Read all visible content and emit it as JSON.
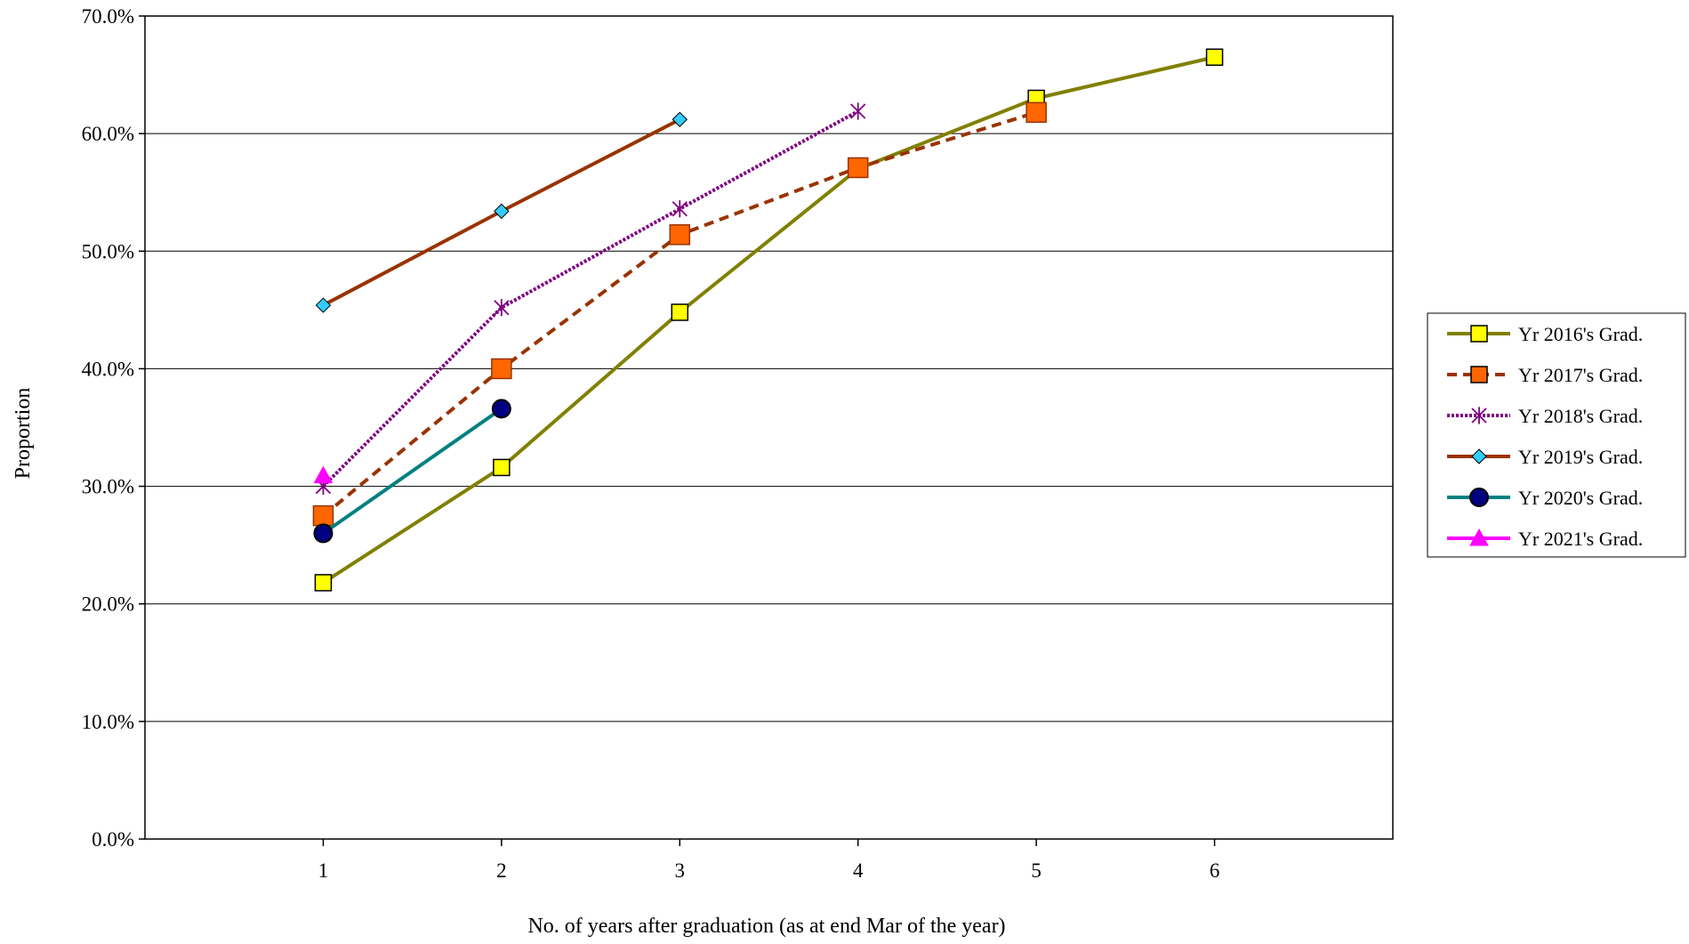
{
  "chart_data": {
    "type": "line",
    "title": "",
    "xlabel": "No. of years after graduation (as at end Mar of the year)",
    "ylabel": "Proportion",
    "x": [
      1,
      2,
      3,
      4,
      5,
      6
    ],
    "x_tick_labels": [
      "1",
      "2",
      "3",
      "4",
      "5",
      "6"
    ],
    "xlim": [
      0,
      7
    ],
    "ylim": [
      0,
      70
    ],
    "y_ticks": [
      0,
      10,
      20,
      30,
      40,
      50,
      60,
      70
    ],
    "y_tick_labels": [
      "0.0%",
      "10.0%",
      "20.0%",
      "30.0%",
      "40.0%",
      "50.0%",
      "60.0%",
      "70.0%"
    ],
    "grid": "horizontal",
    "legend_position": "right",
    "series": [
      {
        "name": "Yr 2016's Grad.",
        "x": [
          1,
          2,
          3,
          4,
          5,
          6
        ],
        "values": [
          21.8,
          31.6,
          44.8,
          57.0,
          63.0,
          66.5
        ],
        "color": "#808000",
        "marker_fill": "#ffff00",
        "marker": "square",
        "dash": "solid"
      },
      {
        "name": "Yr 2017's Grad.",
        "x": [
          1,
          2,
          3,
          4,
          5
        ],
        "values": [
          27.5,
          40.0,
          51.4,
          57.1,
          61.8
        ],
        "color": "#993300",
        "marker_fill": "#ff6600",
        "marker": "square-large",
        "dash": "dashed"
      },
      {
        "name": "Yr 2018's Grad.",
        "x": [
          1,
          2,
          3,
          4
        ],
        "values": [
          30.0,
          45.2,
          53.6,
          61.9
        ],
        "color": "#800080",
        "marker_fill": "#800080",
        "marker": "star",
        "dash": "dotted-double"
      },
      {
        "name": "Yr 2019's Grad.",
        "x": [
          1,
          2,
          3
        ],
        "values": [
          45.4,
          53.4,
          61.2
        ],
        "color": "#993300",
        "marker_fill": "#33ccff",
        "marker": "diamond",
        "dash": "solid"
      },
      {
        "name": "Yr 2020's Grad.",
        "x": [
          1,
          2
        ],
        "values": [
          26.0,
          36.6
        ],
        "color": "#008080",
        "marker_fill": "#000080",
        "marker": "circle",
        "dash": "solid"
      },
      {
        "name": "Yr 2021's Grad.",
        "x": [
          1
        ],
        "values": [
          30.9
        ],
        "color": "#ff00ff",
        "marker_fill": "#ff00ff",
        "marker": "triangle",
        "dash": "solid"
      }
    ]
  }
}
